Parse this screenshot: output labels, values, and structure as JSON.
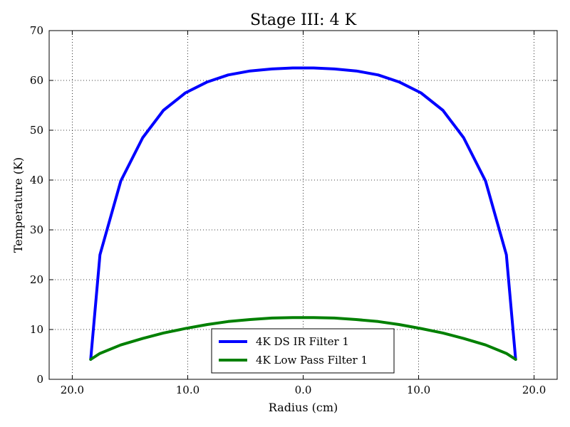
{
  "chart_data": {
    "type": "line",
    "title": "Stage III: 4 K",
    "xlabel": "Radius (cm)",
    "ylabel": "Temperature (K)",
    "xlim": [
      -22,
      22
    ],
    "ylim": [
      0,
      70
    ],
    "xticks": [
      -20,
      -10,
      0,
      10,
      20
    ],
    "xtick_labels": [
      "20.0",
      "10.0",
      "0.0",
      "10.0",
      "20.0"
    ],
    "yticks": [
      0,
      10,
      20,
      30,
      40,
      50,
      60,
      70
    ],
    "ytick_labels": [
      "0",
      "10",
      "20",
      "30",
      "40",
      "50",
      "60",
      "70"
    ],
    "grid": true,
    "legend_position": "lower-center",
    "series": [
      {
        "name": "4K DS IR Filter 1",
        "color": "#0000ff",
        "x": [
          -18.4,
          -17.6,
          -15.8,
          -13.9,
          -12.1,
          -10.2,
          -8.3,
          -6.5,
          -4.6,
          -2.7,
          -0.9,
          0.9,
          2.7,
          4.6,
          6.5,
          8.3,
          10.2,
          12.1,
          13.9,
          15.8,
          17.6,
          18.4
        ],
        "y": [
          4.0,
          25.0,
          39.8,
          48.5,
          54.0,
          57.5,
          59.7,
          61.1,
          61.9,
          62.3,
          62.5,
          62.5,
          62.3,
          61.9,
          61.1,
          59.7,
          57.5,
          54.0,
          48.5,
          39.8,
          25.0,
          4.0
        ]
      },
      {
        "name": "4K Low Pass Filter 1",
        "color": "#008000",
        "x": [
          -18.4,
          -17.6,
          -15.8,
          -13.9,
          -12.1,
          -10.2,
          -8.3,
          -6.5,
          -4.6,
          -2.7,
          -0.9,
          0.9,
          2.7,
          4.6,
          6.5,
          8.3,
          10.2,
          12.1,
          13.9,
          15.8,
          17.6,
          18.4
        ],
        "y": [
          4.0,
          5.2,
          6.9,
          8.2,
          9.3,
          10.2,
          11.0,
          11.6,
          12.0,
          12.3,
          12.4,
          12.4,
          12.3,
          12.0,
          11.6,
          11.0,
          10.2,
          9.3,
          8.2,
          6.9,
          5.2,
          4.0
        ]
      }
    ]
  }
}
